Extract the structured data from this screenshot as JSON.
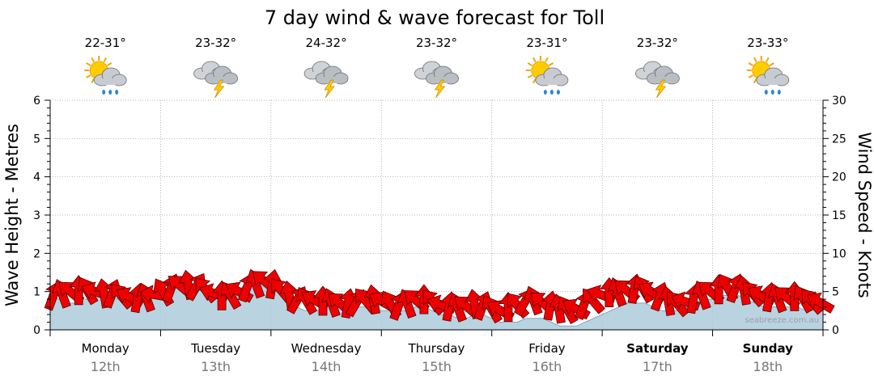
{
  "chart_data": {
    "type": "line",
    "title": "7 day wind & wave forecast for Toll",
    "ylabel_left": "Wave Height - Metres",
    "ylabel_right": "Wind Speed - Knots",
    "ylim_left": [
      0,
      6
    ],
    "ylim_right": [
      0,
      30
    ],
    "yticks_left": [
      "0",
      "1",
      "2",
      "3",
      "4",
      "5",
      "6"
    ],
    "yticks_right": [
      "0",
      "5",
      "10",
      "15",
      "20",
      "25",
      "30"
    ],
    "grid": true,
    "watermark": "seabreeze.com.au",
    "days": [
      {
        "name": "Monday",
        "date": "12th",
        "temp": "22-31°",
        "icon": "sun-cloud-rain-icon",
        "bold": false
      },
      {
        "name": "Tuesday",
        "date": "13th",
        "temp": "23-32°",
        "icon": "cloud-lightning-icon",
        "bold": false
      },
      {
        "name": "Wednesday",
        "date": "14th",
        "temp": "24-32°",
        "icon": "cloud-lightning-icon",
        "bold": false
      },
      {
        "name": "Thursday",
        "date": "15th",
        "temp": "23-32°",
        "icon": "cloud-lightning-icon",
        "bold": false
      },
      {
        "name": "Friday",
        "date": "16th",
        "temp": "23-31°",
        "icon": "sun-cloud-rain-icon",
        "bold": false
      },
      {
        "name": "Saturday",
        "date": "17th",
        "temp": "23-32°",
        "icon": "cloud-lightning-icon",
        "bold": true
      },
      {
        "name": "Sunday",
        "date": "18th",
        "temp": "23-33°",
        "icon": "sun-cloud-rain-icon",
        "bold": true
      }
    ],
    "series": [
      {
        "unit": "knots",
        "axis": "right",
        "values": [
          4.5,
          4.8,
          5.0,
          5.2,
          5.2,
          5.0,
          4.8,
          4.8,
          4.5,
          4.3,
          4.2,
          4.3,
          4.6,
          5.0,
          5.5,
          5.8,
          5.9,
          5.7,
          5.3,
          4.8,
          4.5,
          4.6,
          5.0,
          5.6,
          6.1,
          6.4,
          6.0,
          5.2,
          4.5,
          4.0,
          3.9,
          3.9,
          3.8,
          3.6,
          3.5,
          3.5,
          3.6,
          3.9,
          4.0,
          3.7,
          3.4,
          3.2,
          3.5,
          3.9,
          4.0,
          3.7,
          3.3,
          3.1,
          3.0,
          3.1,
          3.4,
          3.2,
          2.8,
          2.6,
          3.0,
          3.3,
          3.7,
          3.9,
          3.6,
          3.2,
          2.8,
          2.7,
          2.8,
          3.3,
          3.9,
          4.6,
          4.9,
          5.0,
          5.2,
          5.4,
          5.4,
          5.0,
          4.4,
          3.8,
          3.5,
          3.7,
          4.1,
          4.6,
          5.0,
          5.3,
          5.6,
          5.5,
          5.2,
          4.8,
          4.5,
          4.3,
          4.2,
          4.3,
          4.4,
          4.1,
          3.8,
          3.6
        ],
        "directions": [
          200,
          160,
          130,
          180,
          150,
          110,
          170,
          200,
          140,
          120,
          190,
          160,
          100,
          150,
          200,
          130,
          170,
          210,
          140,
          110,
          180,
          150,
          120,
          200,
          160,
          130,
          190,
          140,
          170,
          210,
          150,
          120,
          180,
          160,
          130,
          190,
          210,
          140,
          170,
          120,
          150,
          200,
          160,
          130,
          180,
          140,
          110,
          190,
          160,
          130,
          170,
          200,
          150,
          120,
          180,
          140,
          210,
          160,
          130,
          190,
          170,
          150,
          120,
          200,
          140,
          110,
          180,
          160,
          130,
          190,
          150,
          120,
          200,
          170,
          140,
          110,
          190,
          160,
          130,
          180,
          150,
          200,
          170,
          140,
          120,
          190,
          160,
          130,
          180,
          150,
          140,
          120
        ]
      },
      {
        "unit": "metres",
        "axis": "left",
        "values": [
          0.9,
          0.8,
          0.7,
          0.7,
          0.8,
          0.8,
          0.9,
          0.9,
          0.8,
          0.7,
          0.7,
          0.8,
          0.9,
          1.1,
          1.2,
          1.2,
          1.2,
          1.1,
          1.0,
          0.9,
          0.8,
          0.8,
          1.0,
          1.2,
          1.2,
          1.2,
          1.1,
          1.0,
          0.8,
          0.6,
          0.5,
          0.5,
          0.5,
          0.6,
          0.6,
          0.6,
          0.6,
          0.6,
          0.6,
          0.5,
          0.5,
          0.5,
          0.5,
          0.6,
          0.6,
          0.5,
          0.4,
          0.4,
          0.3,
          0.3,
          0.4,
          0.4,
          0.3,
          0.2,
          0.2,
          0.2,
          0.3,
          0.3,
          0.3,
          0.2,
          0.1,
          0.1,
          0.1,
          0.2,
          0.3,
          0.4,
          0.5,
          0.6,
          0.7,
          0.7,
          0.7,
          0.6,
          0.5,
          0.5,
          0.5,
          0.6,
          0.7,
          0.8,
          0.8,
          0.9,
          0.9,
          0.9,
          0.8,
          0.7,
          0.6,
          0.6,
          0.6,
          0.6,
          0.6,
          0.5,
          0.5,
          0.5
        ]
      }
    ]
  }
}
